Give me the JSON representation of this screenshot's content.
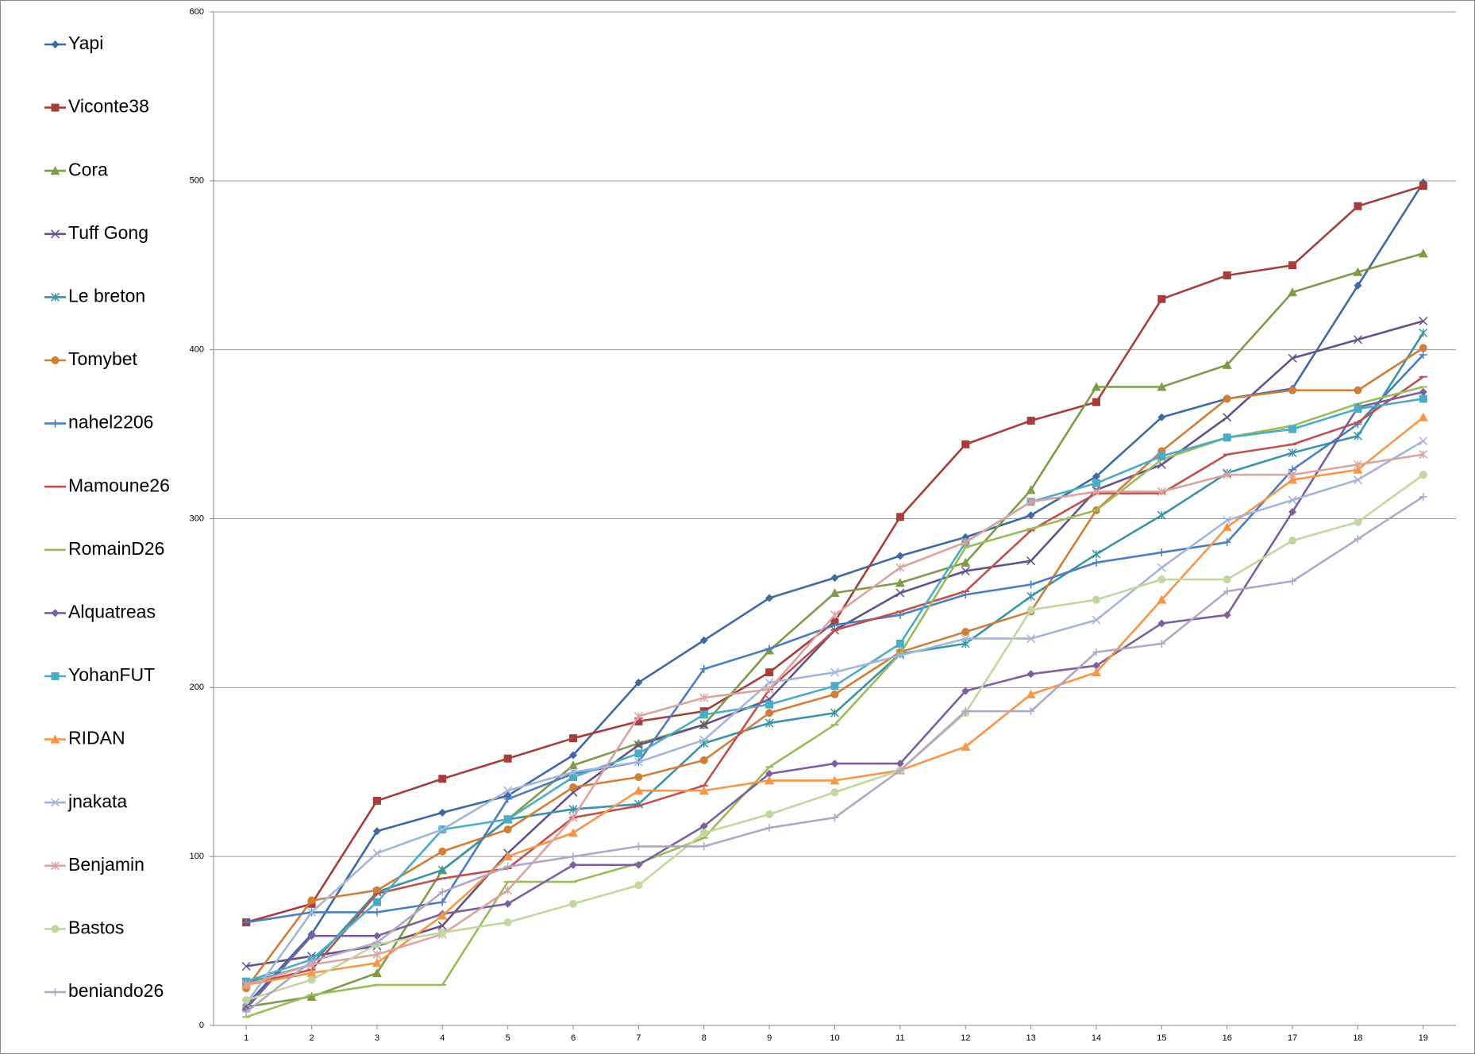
{
  "chart_data": {
    "type": "line",
    "x": [
      1,
      2,
      3,
      4,
      5,
      6,
      7,
      8,
      9,
      10,
      11,
      12,
      13,
      14,
      15,
      16,
      17,
      18,
      19
    ],
    "xlim": [
      0.5,
      19.5
    ],
    "xticks": [
      1,
      2,
      3,
      4,
      5,
      6,
      7,
      8,
      9,
      10,
      11,
      12,
      13,
      14,
      15,
      16,
      17,
      18,
      19
    ],
    "ylim": [
      0,
      600
    ],
    "yticks": [
      0,
      100,
      200,
      300,
      400,
      500,
      600
    ],
    "grid": true,
    "legend": "left",
    "series": [
      {
        "name": "Yapi",
        "color": "#3e6aa1",
        "marker": "diamond",
        "values": [
          12,
          54,
          115,
          126,
          136,
          160,
          203,
          228,
          253,
          265,
          278,
          289,
          302,
          325,
          360,
          371,
          377,
          438,
          499
        ]
      },
      {
        "name": "Viconte38",
        "color": "#a63d3a",
        "marker": "square",
        "values": [
          61,
          72,
          133,
          146,
          158,
          170,
          180,
          186,
          209,
          239,
          301,
          344,
          358,
          369,
          430,
          444,
          450,
          485,
          497
        ]
      },
      {
        "name": "Cora",
        "color": "#7f9a48",
        "marker": "triangle",
        "values": [
          11,
          17,
          31,
          92,
          122,
          154,
          167,
          178,
          222,
          256,
          262,
          274,
          317,
          378,
          378,
          391,
          434,
          446,
          457
        ]
      },
      {
        "name": "Tuff Gong",
        "color": "#66508a",
        "marker": "x",
        "values": [
          35,
          41,
          47,
          59,
          102,
          138,
          166,
          178,
          193,
          234,
          256,
          269,
          275,
          317,
          332,
          360,
          395,
          406,
          417
        ]
      },
      {
        "name": "Le breton",
        "color": "#3a93a6",
        "marker": "asterisk",
        "values": [
          25,
          36,
          79,
          92,
          122,
          128,
          131,
          167,
          179,
          185,
          220,
          226,
          254,
          279,
          302,
          327,
          339,
          349,
          410
        ]
      },
      {
        "name": "Tomybet",
        "color": "#d07e38",
        "marker": "circle",
        "values": [
          22,
          74,
          80,
          103,
          116,
          141,
          147,
          157,
          185,
          196,
          221,
          233,
          245,
          305,
          340,
          371,
          376,
          376,
          401
        ]
      },
      {
        "name": "nahel2206",
        "color": "#4a7ec0",
        "marker": "plus",
        "values": [
          61,
          67,
          67,
          73,
          134,
          149,
          156,
          211,
          223,
          237,
          243,
          255,
          261,
          274,
          280,
          286,
          329,
          356,
          397
        ]
      },
      {
        "name": "Mamoune26",
        "color": "#c0504d",
        "marker": "dash",
        "values": [
          24,
          33,
          78,
          87,
          93,
          123,
          130,
          142,
          199,
          234,
          245,
          257,
          293,
          315,
          315,
          338,
          344,
          357,
          384
        ]
      },
      {
        "name": "RomainD26",
        "color": "#9bbb59",
        "marker": "dash",
        "values": [
          5,
          18,
          24,
          24,
          85,
          85,
          96,
          111,
          153,
          178,
          220,
          283,
          294,
          305,
          335,
          348,
          355,
          368,
          378
        ]
      },
      {
        "name": "Alquatreas",
        "color": "#7d5fa0",
        "marker": "diamond",
        "values": [
          10,
          53,
          53,
          66,
          72,
          95,
          95,
          118,
          149,
          155,
          155,
          198,
          208,
          213,
          238,
          243,
          304,
          366,
          375
        ]
      },
      {
        "name": "YohanFUT",
        "color": "#4bacc6",
        "marker": "square",
        "values": [
          26,
          39,
          73,
          116,
          122,
          147,
          161,
          184,
          190,
          201,
          226,
          286,
          310,
          321,
          337,
          348,
          353,
          365,
          371
        ]
      },
      {
        "name": "RIDAN",
        "color": "#f79646",
        "marker": "triangle",
        "values": [
          24,
          31,
          37,
          65,
          100,
          114,
          139,
          139,
          145,
          145,
          151,
          165,
          196,
          209,
          252,
          295,
          323,
          329,
          360
        ]
      },
      {
        "name": "jnakata",
        "color": "#a3b5db",
        "marker": "x",
        "values": [
          13,
          67,
          102,
          116,
          139,
          150,
          156,
          169,
          203,
          209,
          219,
          229,
          229,
          240,
          271,
          299,
          311,
          323,
          346
        ]
      },
      {
        "name": "Benjamin",
        "color": "#dba3a2",
        "marker": "asterisk",
        "values": [
          24,
          36,
          42,
          54,
          80,
          123,
          183,
          194,
          199,
          243,
          271,
          286,
          310,
          316,
          316,
          326,
          326,
          332,
          338
        ]
      },
      {
        "name": "Bastos",
        "color": "#c3d6a0",
        "marker": "circle",
        "values": [
          15,
          27,
          48,
          55,
          61,
          72,
          83,
          114,
          125,
          138,
          151,
          185,
          246,
          252,
          264,
          264,
          287,
          298,
          326
        ]
      },
      {
        "name": "beniando26",
        "color": "#b3a6c9",
        "marker": "plus",
        "values": [
          8,
          38,
          49,
          79,
          94,
          100,
          106,
          106,
          117,
          123,
          151,
          186,
          186,
          221,
          226,
          257,
          263,
          288,
          313
        ]
      }
    ]
  }
}
